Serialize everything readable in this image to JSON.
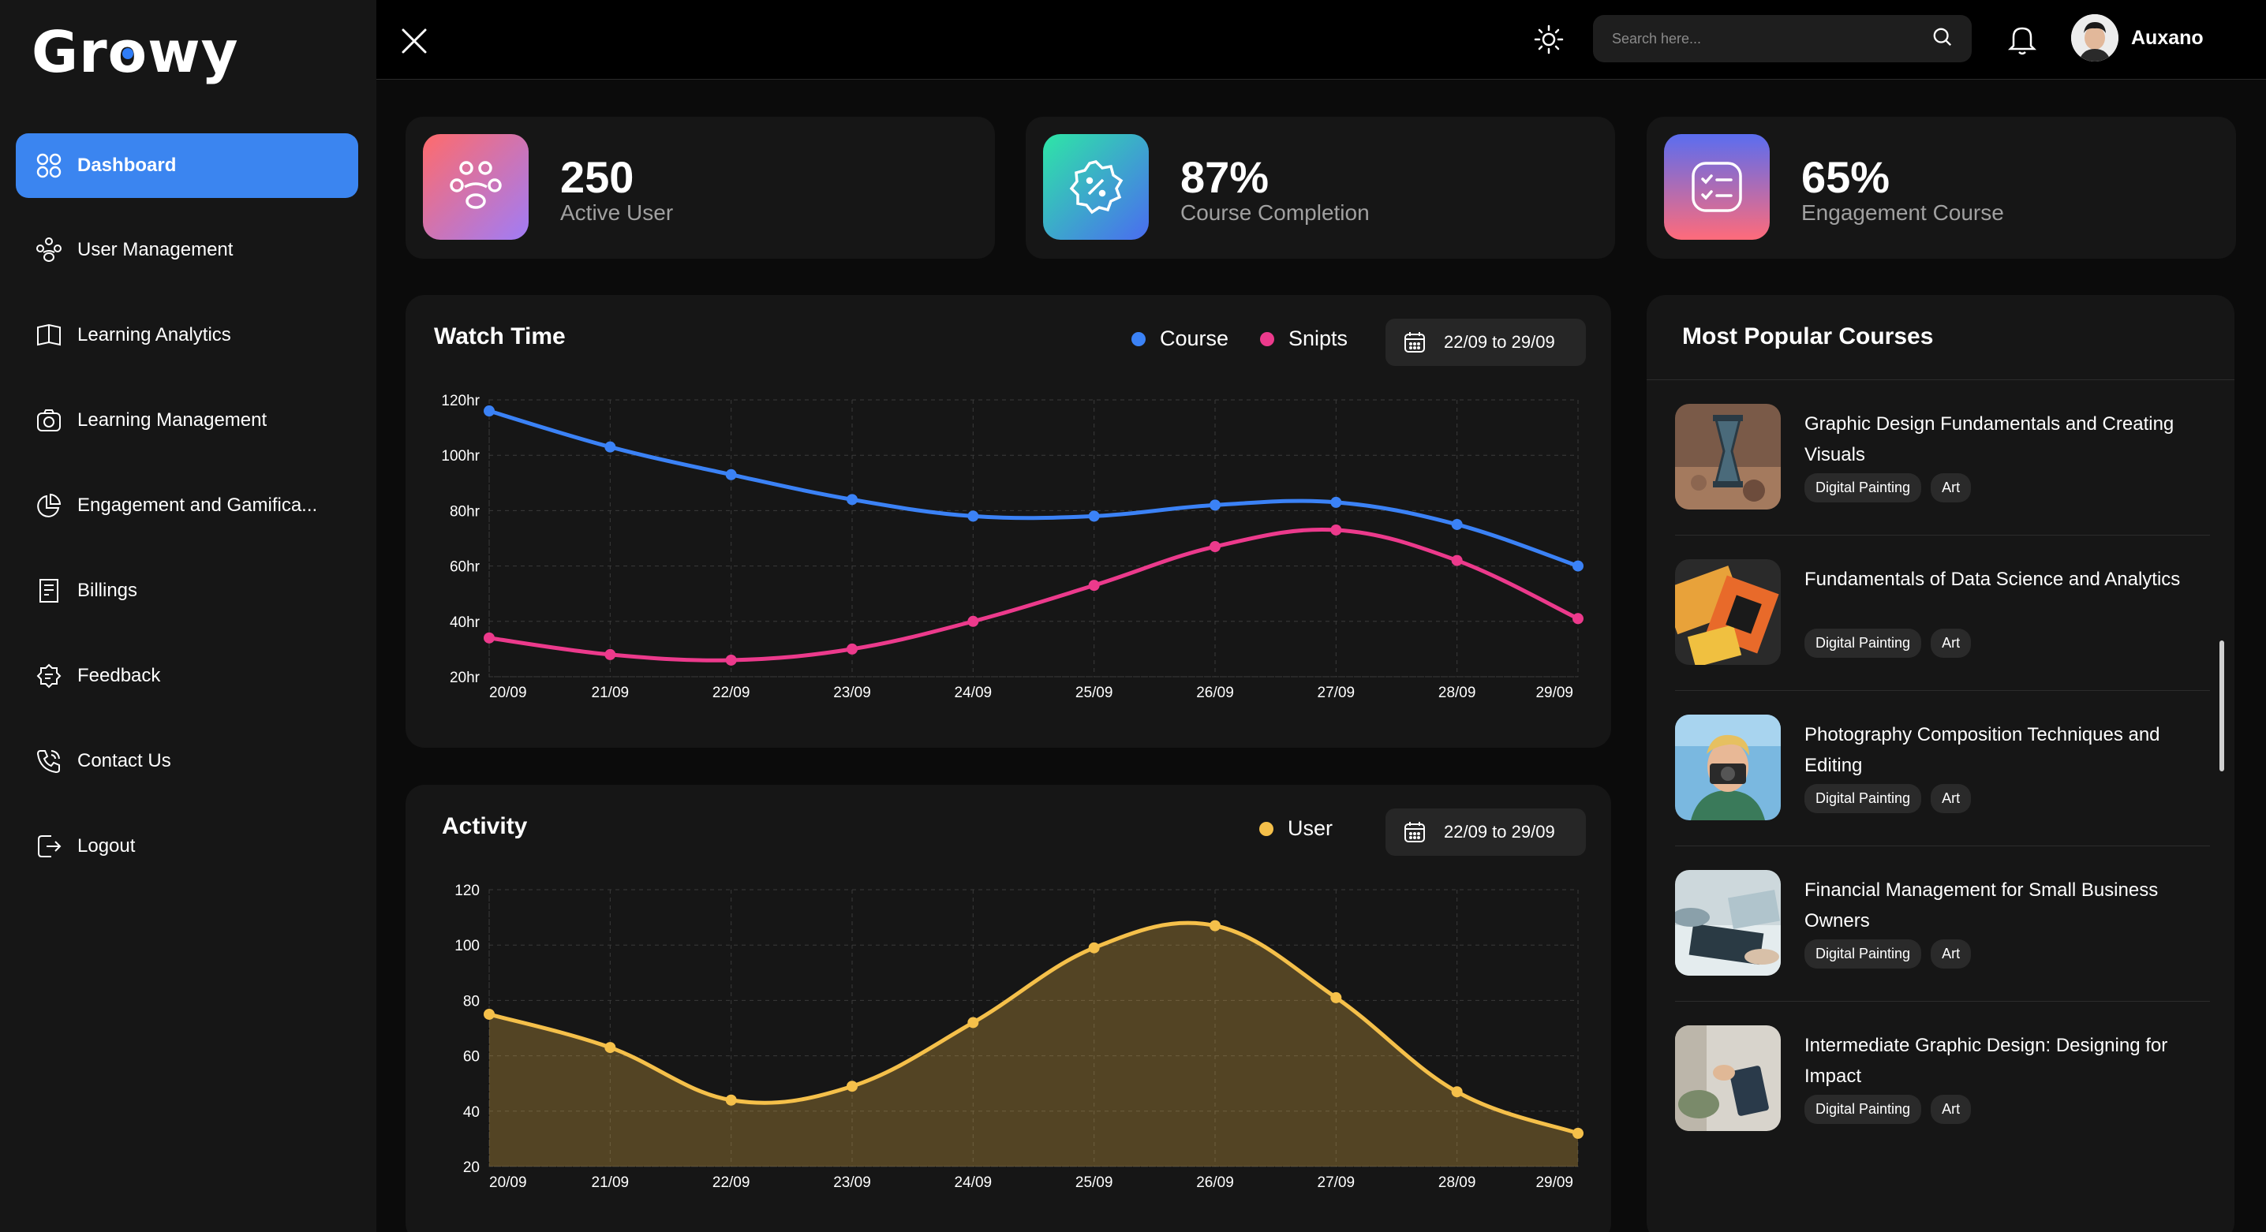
{
  "app": {
    "logo_text_a": "Gr",
    "logo_text_o": "o",
    "logo_text_b": "wy"
  },
  "sidebar": {
    "items": [
      {
        "label": "Dashboard",
        "icon": "grid-icon",
        "active": true
      },
      {
        "label": "User Management",
        "icon": "users-icon"
      },
      {
        "label": "Learning Analytics",
        "icon": "book-icon"
      },
      {
        "label": "Learning Management",
        "icon": "camera-icon"
      },
      {
        "label": "Engagement and Gamifica...",
        "icon": "pie-chart-icon"
      },
      {
        "label": "Billings",
        "icon": "receipt-icon"
      },
      {
        "label": "Feedback",
        "icon": "feedback-icon"
      },
      {
        "label": "Contact Us",
        "icon": "phone-icon"
      },
      {
        "label": "Logout",
        "icon": "logout-icon"
      }
    ]
  },
  "topbar": {
    "search_placeholder": "Search here...",
    "user_name": "Auxano"
  },
  "stats": [
    {
      "value": "250",
      "label": "Active User",
      "icon": "users-icon",
      "gradient": [
        "#ff6b6b",
        "#a07cf7"
      ]
    },
    {
      "value": "87%",
      "label": "Course Completion",
      "icon": "badge-percent-icon",
      "gradient": [
        "#2ee6a6",
        "#4a6cf0"
      ]
    },
    {
      "value": "65%",
      "label": "Engagement Course",
      "icon": "checklist-icon",
      "gradient": [
        "#5a6df0",
        "#ff6b7a"
      ]
    }
  ],
  "watch_time": {
    "title": "Watch Time",
    "legend_course": "Course",
    "legend_snipts": "Snipts",
    "date_range": "22/09 to 29/09"
  },
  "activity": {
    "title": "Activity",
    "legend_user": "User",
    "date_range": "22/09 to 29/09"
  },
  "chart_data": [
    {
      "type": "line",
      "title": "Watch Time",
      "x": [
        "20/09",
        "21/09",
        "22/09",
        "23/09",
        "24/09",
        "25/09",
        "26/09",
        "27/09",
        "28/09",
        "29/09"
      ],
      "y_ticks": [
        "20hr",
        "40hr",
        "60hr",
        "80hr",
        "100hr",
        "120hr"
      ],
      "ylim": [
        20,
        120
      ],
      "grid": true,
      "legend": "top-right",
      "series": [
        {
          "name": "Course",
          "color": "#3b82f6",
          "values": [
            116,
            103,
            93,
            84,
            78,
            78,
            82,
            83,
            75,
            60
          ]
        },
        {
          "name": "Snipts",
          "color": "#ec3a8c",
          "values": [
            34,
            28,
            26,
            30,
            40,
            53,
            67,
            73,
            62,
            41
          ]
        }
      ]
    },
    {
      "type": "area",
      "title": "Activity",
      "x": [
        "20/09",
        "21/09",
        "22/09",
        "23/09",
        "24/09",
        "25/09",
        "26/09",
        "27/09",
        "28/09",
        "29/09"
      ],
      "y_ticks": [
        "20",
        "40",
        "60",
        "80",
        "100",
        "120"
      ],
      "ylim": [
        20,
        120
      ],
      "grid": true,
      "legend": "top-right",
      "series": [
        {
          "name": "User",
          "color": "#f5c04a",
          "values": [
            75,
            63,
            44,
            49,
            72,
            99,
            107,
            81,
            47,
            32
          ]
        }
      ]
    }
  ],
  "popular": {
    "title": "Most Popular Courses",
    "courses": [
      {
        "title": "Graphic Design Fundamentals and Creating Visuals",
        "tags": [
          "Digital Painting",
          "Art"
        ]
      },
      {
        "title": "Fundamentals of Data Science and Analytics",
        "tags": [
          "Digital Painting",
          "Art"
        ]
      },
      {
        "title": "Photography Composition Techniques and Editing",
        "tags": [
          "Digital Painting",
          "Art"
        ]
      },
      {
        "title": "Financial Management for Small Business Owners",
        "tags": [
          "Digital Painting",
          "Art"
        ]
      },
      {
        "title": "Intermediate Graphic Design: Designing for Impact",
        "tags": [
          "Digital Painting",
          "Art"
        ]
      }
    ]
  }
}
